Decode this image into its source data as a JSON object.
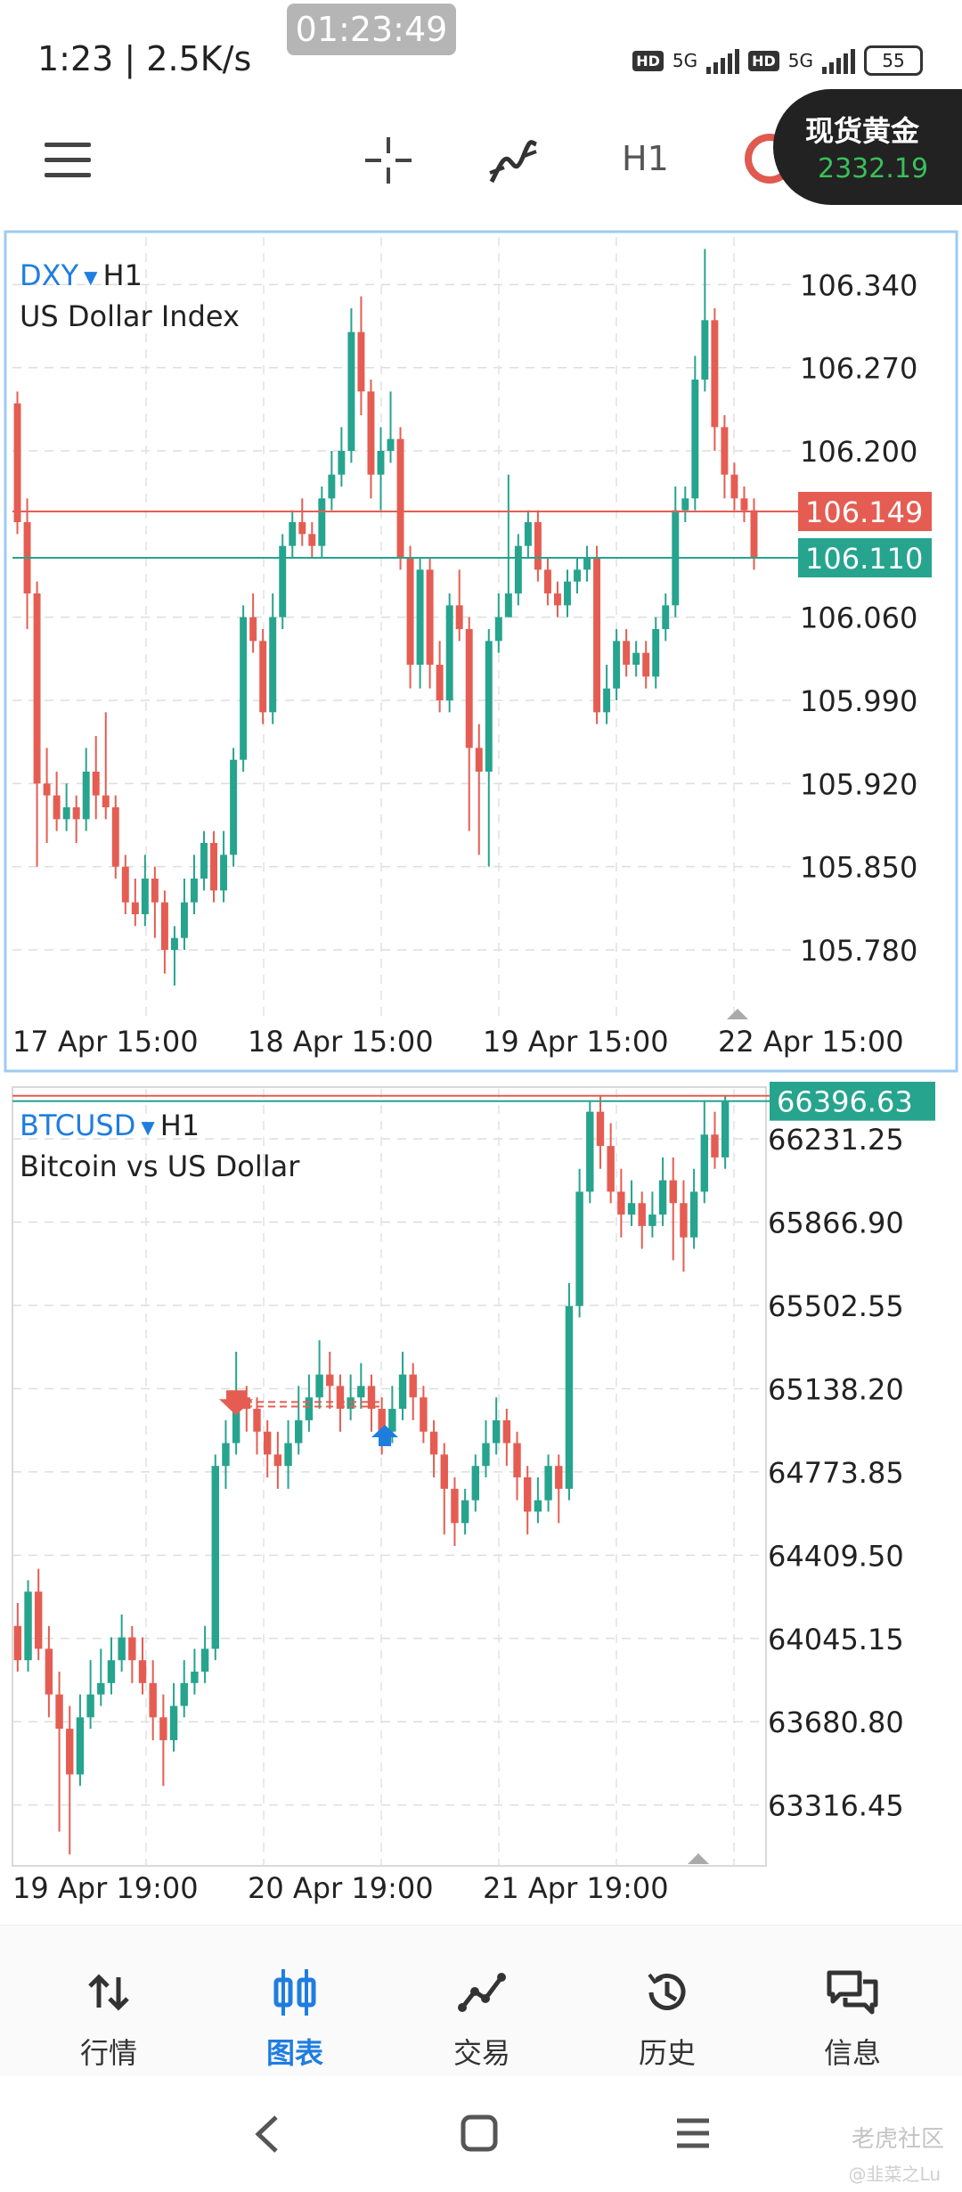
{
  "status": {
    "time": "1:23 | 2.5K/s",
    "recording": "01:23:49",
    "battery": "55",
    "net1": "5G",
    "net2": "5G"
  },
  "toolbar": {
    "timeframe": "H1",
    "chip_name": "现货黄金",
    "chip_price": "2332.19"
  },
  "chart_data": [
    {
      "type": "candlestick",
      "symbol": "DXY",
      "timeframe": "H1",
      "description": "US Dollar Index",
      "y_ticks": [
        "106.340",
        "106.270",
        "106.200",
        "106.060",
        "105.990",
        "105.920",
        "105.850",
        "105.780"
      ],
      "ylim": [
        105.72,
        106.38
      ],
      "x_labels": [
        "17 Apr 15:00",
        "18 Apr 15:00",
        "19 Apr 15:00",
        "22 Apr 15:00"
      ],
      "price_lines": [
        {
          "value": 106.149,
          "label": "106.149",
          "color": "#e55d52"
        },
        {
          "value": 106.11,
          "label": "106.110",
          "color": "#26a48e"
        }
      ],
      "candles": [
        [
          106.24,
          106.14,
          106.25,
          106.13
        ],
        [
          106.14,
          106.08,
          106.16,
          106.05
        ],
        [
          106.08,
          105.92,
          106.09,
          105.85
        ],
        [
          105.92,
          105.91,
          105.95,
          105.87
        ],
        [
          105.91,
          105.89,
          105.93,
          105.88
        ],
        [
          105.89,
          105.9,
          105.92,
          105.88
        ],
        [
          105.9,
          105.89,
          105.91,
          105.87
        ],
        [
          105.89,
          105.93,
          105.95,
          105.88
        ],
        [
          105.93,
          105.91,
          105.96,
          105.89
        ],
        [
          105.91,
          105.9,
          105.98,
          105.89
        ],
        [
          105.9,
          105.85,
          105.91,
          105.84
        ],
        [
          105.85,
          105.82,
          105.86,
          105.81
        ],
        [
          105.82,
          105.81,
          105.84,
          105.8
        ],
        [
          105.81,
          105.84,
          105.86,
          105.8
        ],
        [
          105.84,
          105.82,
          105.85,
          105.79
        ],
        [
          105.82,
          105.78,
          105.83,
          105.76
        ],
        [
          105.78,
          105.79,
          105.8,
          105.75
        ],
        [
          105.79,
          105.82,
          105.84,
          105.78
        ],
        [
          105.82,
          105.84,
          105.86,
          105.81
        ],
        [
          105.84,
          105.87,
          105.88,
          105.83
        ],
        [
          105.87,
          105.83,
          105.88,
          105.82
        ],
        [
          105.83,
          105.86,
          105.88,
          105.82
        ],
        [
          105.86,
          105.94,
          105.95,
          105.85
        ],
        [
          105.94,
          106.06,
          106.07,
          105.93
        ],
        [
          106.06,
          106.04,
          106.08,
          106.03
        ],
        [
          106.04,
          105.98,
          106.05,
          105.97
        ],
        [
          105.98,
          106.06,
          106.08,
          105.97
        ],
        [
          106.06,
          106.12,
          106.13,
          106.05
        ],
        [
          106.12,
          106.14,
          106.15,
          106.11
        ],
        [
          106.14,
          106.13,
          106.16,
          106.12
        ],
        [
          106.13,
          106.12,
          106.14,
          106.11
        ],
        [
          106.12,
          106.16,
          106.17,
          106.11
        ],
        [
          106.16,
          106.18,
          106.2,
          106.15
        ],
        [
          106.18,
          106.2,
          106.22,
          106.17
        ],
        [
          106.2,
          106.3,
          106.32,
          106.19
        ],
        [
          106.3,
          106.25,
          106.33,
          106.23
        ],
        [
          106.25,
          106.18,
          106.26,
          106.16
        ],
        [
          106.18,
          106.2,
          106.22,
          106.15
        ],
        [
          106.2,
          106.21,
          106.25,
          106.19
        ],
        [
          106.21,
          106.11,
          106.22,
          106.1
        ],
        [
          106.11,
          106.02,
          106.12,
          106.0
        ],
        [
          106.02,
          106.1,
          106.11,
          106.0
        ],
        [
          106.1,
          106.02,
          106.11,
          106.0
        ],
        [
          106.02,
          105.99,
          106.04,
          105.98
        ],
        [
          105.99,
          106.07,
          106.08,
          105.98
        ],
        [
          106.07,
          106.05,
          106.1,
          106.04
        ],
        [
          106.05,
          105.95,
          106.06,
          105.88
        ],
        [
          105.95,
          105.93,
          105.97,
          105.86
        ],
        [
          105.93,
          106.04,
          106.05,
          105.85
        ],
        [
          106.04,
          106.06,
          106.08,
          106.03
        ],
        [
          106.06,
          106.08,
          106.18,
          106.06
        ],
        [
          106.08,
          106.12,
          106.13,
          106.07
        ],
        [
          106.12,
          106.14,
          106.15,
          106.11
        ],
        [
          106.14,
          106.1,
          106.15,
          106.09
        ],
        [
          106.1,
          106.08,
          106.11,
          106.07
        ],
        [
          106.08,
          106.07,
          106.09,
          106.06
        ],
        [
          106.07,
          106.09,
          106.1,
          106.06
        ],
        [
          106.09,
          106.1,
          106.11,
          106.08
        ],
        [
          106.1,
          106.11,
          106.12,
          106.09
        ],
        [
          106.11,
          105.98,
          106.12,
          105.97
        ],
        [
          105.98,
          106.0,
          106.02,
          105.97
        ],
        [
          106.0,
          106.04,
          106.05,
          105.99
        ],
        [
          106.04,
          106.02,
          106.05,
          106.01
        ],
        [
          106.02,
          106.03,
          106.04,
          106.01
        ],
        [
          106.03,
          106.01,
          106.04,
          106.0
        ],
        [
          106.01,
          106.05,
          106.06,
          106.0
        ],
        [
          106.05,
          106.07,
          106.08,
          106.04
        ],
        [
          106.07,
          106.15,
          106.17,
          106.06
        ],
        [
          106.15,
          106.16,
          106.17,
          106.14
        ],
        [
          106.16,
          106.26,
          106.28,
          106.15
        ],
        [
          106.26,
          106.31,
          106.37,
          106.25
        ],
        [
          106.31,
          106.22,
          106.32,
          106.2
        ],
        [
          106.22,
          106.18,
          106.23,
          106.16
        ],
        [
          106.18,
          106.16,
          106.19,
          106.15
        ],
        [
          106.16,
          106.15,
          106.17,
          106.14
        ],
        [
          106.15,
          106.11,
          106.16,
          106.1
        ]
      ]
    },
    {
      "type": "candlestick",
      "symbol": "BTCUSD",
      "timeframe": "H1",
      "description": "Bitcoin vs US Dollar",
      "y_ticks": [
        "66231.25",
        "65866.90",
        "65502.55",
        "65138.20",
        "64773.85",
        "64409.50",
        "64045.15",
        "63680.80",
        "63316.45"
      ],
      "ylim": [
        63050,
        66450
      ],
      "x_labels": [
        "19 Apr 19:00",
        "20 Apr 19:00",
        "21 Apr 19:00"
      ],
      "price_lines": [
        {
          "value": 66420,
          "label": "",
          "color": "#e55d52"
        },
        {
          "value": 66396.63,
          "label": "66396.63",
          "color": "#26a48e"
        }
      ],
      "candles": [
        [
          64100,
          63950,
          64200,
          63900
        ],
        [
          63950,
          64250,
          64300,
          63900
        ],
        [
          64250,
          64000,
          64350,
          63950
        ],
        [
          64000,
          63800,
          64100,
          63700
        ],
        [
          63800,
          63650,
          63900,
          63200
        ],
        [
          63650,
          63450,
          63750,
          63100
        ],
        [
          63450,
          63700,
          63800,
          63400
        ],
        [
          63700,
          63800,
          63950,
          63650
        ],
        [
          63800,
          63850,
          64000,
          63750
        ],
        [
          63850,
          63950,
          64050,
          63800
        ],
        [
          63950,
          64050,
          64150,
          63900
        ],
        [
          64050,
          63950,
          64100,
          63850
        ],
        [
          63950,
          63850,
          64050,
          63800
        ],
        [
          63850,
          63700,
          63950,
          63600
        ],
        [
          63700,
          63600,
          63800,
          63400
        ],
        [
          63600,
          63750,
          63850,
          63550
        ],
        [
          63750,
          63850,
          63950,
          63700
        ],
        [
          63850,
          63900,
          64000,
          63800
        ],
        [
          63900,
          64000,
          64100,
          63850
        ],
        [
          64000,
          64800,
          64850,
          63950
        ],
        [
          64800,
          64900,
          65000,
          64700
        ],
        [
          64900,
          65100,
          65300,
          64850
        ],
        [
          65100,
          65050,
          65150,
          64950
        ],
        [
          65050,
          64950,
          65100,
          64850
        ],
        [
          64950,
          64850,
          65000,
          64750
        ],
        [
          64850,
          64800,
          64950,
          64700
        ],
        [
          64800,
          64900,
          65000,
          64700
        ],
        [
          64900,
          65000,
          65150,
          64850
        ],
        [
          65000,
          65100,
          65200,
          64950
        ],
        [
          65100,
          65200,
          65350,
          65050
        ],
        [
          65200,
          65150,
          65300,
          65050
        ],
        [
          65150,
          65050,
          65200,
          64950
        ],
        [
          65050,
          65100,
          65200,
          65000
        ],
        [
          65100,
          65150,
          65250,
          65050
        ],
        [
          65150,
          65050,
          65200,
          64950
        ],
        [
          65050,
          64950,
          65100,
          64850
        ],
        [
          64950,
          65050,
          65150,
          64900
        ],
        [
          65050,
          65200,
          65300,
          65000
        ],
        [
          65200,
          65100,
          65250,
          65000
        ],
        [
          65100,
          64950,
          65150,
          64900
        ],
        [
          64950,
          64850,
          65000,
          64750
        ],
        [
          64850,
          64700,
          64900,
          64500
        ],
        [
          64700,
          64550,
          64750,
          64450
        ],
        [
          64550,
          64650,
          64700,
          64500
        ],
        [
          64650,
          64800,
          64850,
          64600
        ],
        [
          64800,
          64900,
          65000,
          64750
        ],
        [
          64900,
          65000,
          65100,
          64850
        ],
        [
          65000,
          64900,
          65050,
          64800
        ],
        [
          64900,
          64750,
          64950,
          64650
        ],
        [
          64750,
          64600,
          64800,
          64500
        ],
        [
          64600,
          64650,
          64750,
          64550
        ],
        [
          64650,
          64800,
          64850,
          64600
        ],
        [
          64800,
          64700,
          64850,
          64550
        ],
        [
          64700,
          65500,
          65600,
          64650
        ],
        [
          65500,
          66000,
          66100,
          65450
        ],
        [
          66000,
          66350,
          66400,
          65950
        ],
        [
          66350,
          66200,
          66420,
          66100
        ],
        [
          66200,
          66000,
          66300,
          65950
        ],
        [
          66000,
          65900,
          66100,
          65800
        ],
        [
          65900,
          65950,
          66050,
          65850
        ],
        [
          65950,
          65850,
          66000,
          65750
        ],
        [
          65850,
          65900,
          66000,
          65800
        ],
        [
          65900,
          66050,
          66150,
          65850
        ],
        [
          66050,
          65950,
          66150,
          65700
        ],
        [
          65950,
          65800,
          66050,
          65650
        ],
        [
          65800,
          66000,
          66100,
          65750
        ],
        [
          66000,
          66250,
          66400,
          65950
        ],
        [
          66250,
          66150,
          66350,
          66100
        ],
        [
          66150,
          66396,
          66420,
          66100
        ]
      ]
    }
  ],
  "nav": [
    {
      "label": "行情"
    },
    {
      "label": "图表"
    },
    {
      "label": "交易"
    },
    {
      "label": "历史"
    },
    {
      "label": "信息"
    }
  ],
  "watermark": "老虎社区",
  "watermark_sub": "@韭菜之Lu"
}
